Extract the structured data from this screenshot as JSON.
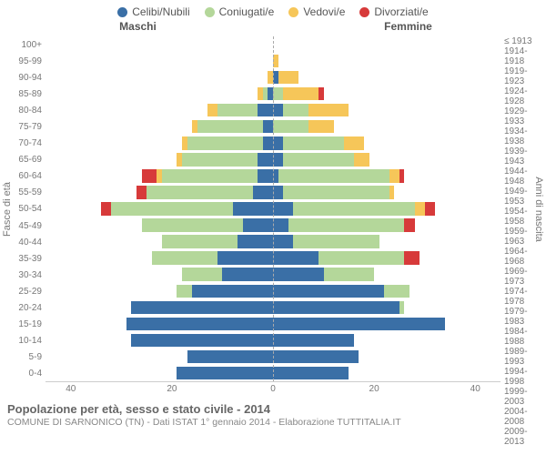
{
  "legend": {
    "items": [
      {
        "label": "Celibi/Nubili",
        "color": "#3a6fa6"
      },
      {
        "label": "Coniugati/e",
        "color": "#b4d79a"
      },
      {
        "label": "Vedovi/e",
        "color": "#f6c659"
      },
      {
        "label": "Divorziati/e",
        "color": "#d73a3a"
      }
    ]
  },
  "headers": {
    "male": "Maschi",
    "female": "Femmine"
  },
  "axis_labels": {
    "left": "Fasce di età",
    "right": "Anni di nascita"
  },
  "chart": {
    "type": "population-pyramid",
    "xmax": 45,
    "xticks": [
      40,
      20,
      0,
      20,
      40
    ],
    "background": "#ffffff",
    "centerline_color": "#aaaaaa",
    "colors": {
      "celibi": "#3a6fa6",
      "coniugati": "#b4d79a",
      "vedovi": "#f6c659",
      "divorziati": "#d73a3a"
    },
    "rows": [
      {
        "age": "100+",
        "birth": "≤ 1913",
        "m": [
          0,
          0,
          0,
          0
        ],
        "f": [
          0,
          0,
          0,
          0
        ]
      },
      {
        "age": "95-99",
        "birth": "1914-1918",
        "m": [
          0,
          0,
          0,
          0
        ],
        "f": [
          0,
          0,
          1,
          0
        ]
      },
      {
        "age": "90-94",
        "birth": "1919-1923",
        "m": [
          0,
          0,
          1,
          0
        ],
        "f": [
          1,
          0,
          4,
          0
        ]
      },
      {
        "age": "85-89",
        "birth": "1924-1928",
        "m": [
          1,
          1,
          1,
          0
        ],
        "f": [
          0,
          2,
          7,
          1
        ]
      },
      {
        "age": "80-84",
        "birth": "1929-1933",
        "m": [
          3,
          8,
          2,
          0
        ],
        "f": [
          2,
          5,
          8,
          0
        ]
      },
      {
        "age": "75-79",
        "birth": "1934-1938",
        "m": [
          2,
          13,
          1,
          0
        ],
        "f": [
          0,
          7,
          5,
          0
        ]
      },
      {
        "age": "70-74",
        "birth": "1939-1943",
        "m": [
          2,
          15,
          1,
          0
        ],
        "f": [
          2,
          12,
          4,
          0
        ]
      },
      {
        "age": "65-69",
        "birth": "1944-1948",
        "m": [
          3,
          15,
          1,
          0
        ],
        "f": [
          2,
          14,
          3,
          0
        ]
      },
      {
        "age": "60-64",
        "birth": "1949-1953",
        "m": [
          3,
          19,
          1,
          3
        ],
        "f": [
          1,
          22,
          2,
          1
        ]
      },
      {
        "age": "55-59",
        "birth": "1954-1958",
        "m": [
          4,
          21,
          0,
          2
        ],
        "f": [
          2,
          21,
          1,
          0
        ]
      },
      {
        "age": "50-54",
        "birth": "1959-1963",
        "m": [
          8,
          24,
          0,
          2
        ],
        "f": [
          4,
          24,
          2,
          2
        ]
      },
      {
        "age": "45-49",
        "birth": "1964-1968",
        "m": [
          6,
          20,
          0,
          0
        ],
        "f": [
          3,
          23,
          0,
          2
        ]
      },
      {
        "age": "40-44",
        "birth": "1969-1973",
        "m": [
          7,
          15,
          0,
          0
        ],
        "f": [
          4,
          17,
          0,
          0
        ]
      },
      {
        "age": "35-39",
        "birth": "1974-1978",
        "m": [
          11,
          13,
          0,
          0
        ],
        "f": [
          9,
          17,
          0,
          3
        ]
      },
      {
        "age": "30-34",
        "birth": "1979-1983",
        "m": [
          10,
          8,
          0,
          0
        ],
        "f": [
          10,
          10,
          0,
          0
        ]
      },
      {
        "age": "25-29",
        "birth": "1984-1988",
        "m": [
          16,
          3,
          0,
          0
        ],
        "f": [
          22,
          5,
          0,
          0
        ]
      },
      {
        "age": "20-24",
        "birth": "1989-1993",
        "m": [
          28,
          0,
          0,
          0
        ],
        "f": [
          25,
          1,
          0,
          0
        ]
      },
      {
        "age": "15-19",
        "birth": "1994-1998",
        "m": [
          29,
          0,
          0,
          0
        ],
        "f": [
          34,
          0,
          0,
          0
        ]
      },
      {
        "age": "10-14",
        "birth": "1999-2003",
        "m": [
          28,
          0,
          0,
          0
        ],
        "f": [
          16,
          0,
          0,
          0
        ]
      },
      {
        "age": "5-9",
        "birth": "2004-2008",
        "m": [
          17,
          0,
          0,
          0
        ],
        "f": [
          17,
          0,
          0,
          0
        ]
      },
      {
        "age": "0-4",
        "birth": "2009-2013",
        "m": [
          19,
          0,
          0,
          0
        ],
        "f": [
          15,
          0,
          0,
          0
        ]
      }
    ]
  },
  "footer": {
    "title": "Popolazione per età, sesso e stato civile - 2014",
    "subtitle": "COMUNE DI SARNONICO (TN) - Dati ISTAT 1° gennaio 2014 - Elaborazione TUTTITALIA.IT"
  }
}
